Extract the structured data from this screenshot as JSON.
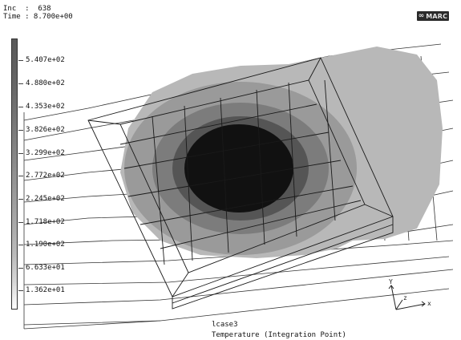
{
  "header": {
    "increment_line": "Inc  :  638",
    "time_line": "Time : 8.700e+00"
  },
  "logo": {
    "text": "MARC"
  },
  "legend": {
    "labels": [
      "5.407e+02",
      "4.880e+02",
      "4.353e+02",
      "3.826e+02",
      "3.299e+02",
      "2.772e+02",
      "2.245e+02",
      "1.718e+02",
      "1.190e+02",
      "6.633e+01",
      "1.362e+01"
    ]
  },
  "footer": {
    "loadcase": "lcase3",
    "quantity": "Temperature (Integration Point)"
  },
  "triad": {
    "x_label": "x",
    "y_label": "Y",
    "z_label": "z"
  },
  "colors": {
    "outer_contour": "#b8b8b8",
    "mid_contour": "#9a9a9a",
    "inner_contour": "#7c7c7c",
    "core": "#111111",
    "mesh": "#1a1a1a"
  }
}
